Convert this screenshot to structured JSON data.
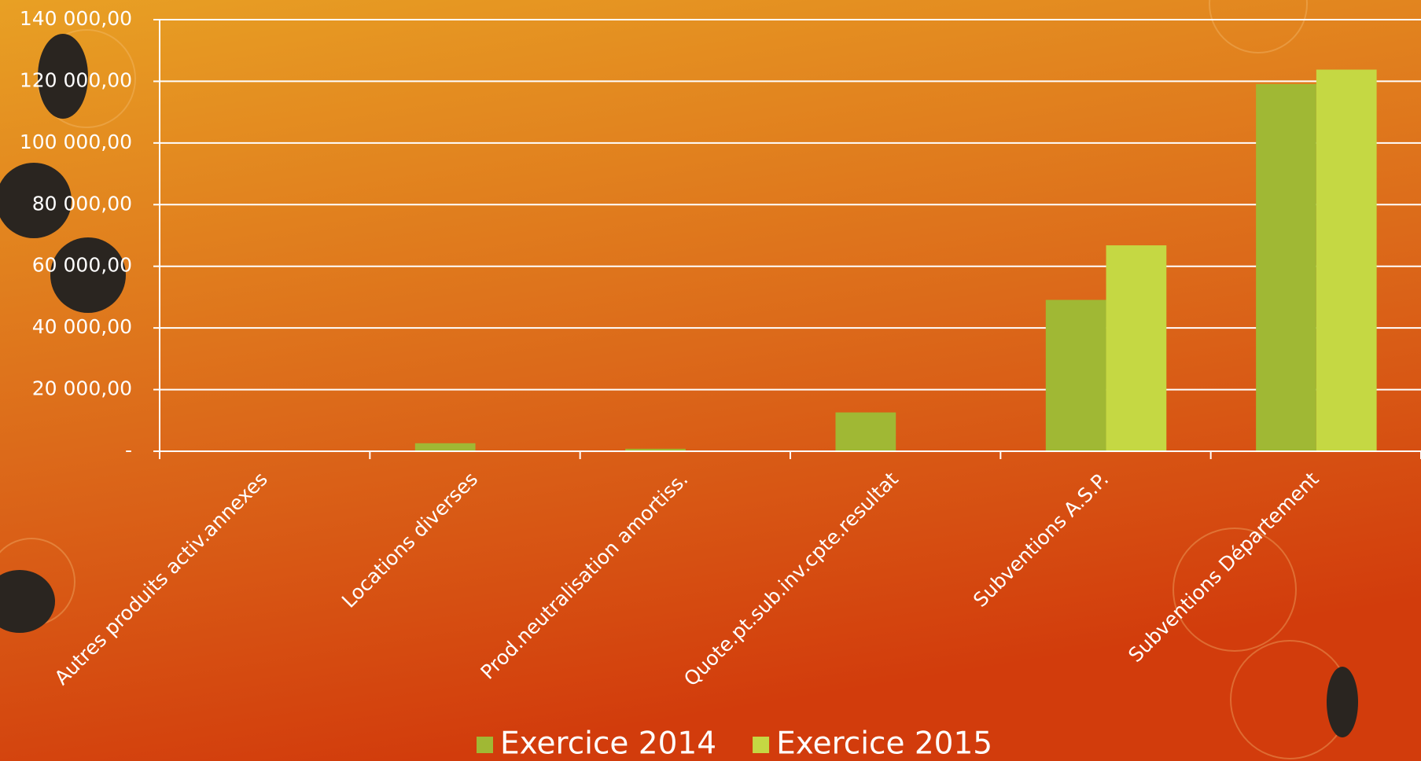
{
  "chart_data": {
    "type": "bar",
    "categories": [
      "Autres produits activ.annexes",
      "Locations diverses",
      "Prod.neutralisation amortiss.",
      "Quote.pt.sub.inv.cpte.resultat",
      "Subventions A.S.P.",
      "Subventions Département"
    ],
    "series": [
      {
        "name": "Exercice 2014",
        "color": "#a0b834",
        "values": [
          0,
          2600,
          800,
          12600,
          49100,
          119100
        ]
      },
      {
        "name": "Exercice 2015",
        "color": "#c5d843",
        "values": [
          0,
          0,
          0,
          0,
          66800,
          123800
        ]
      }
    ],
    "ylim": [
      0,
      140000
    ],
    "yticks": [
      {
        "value": 0,
        "label": "-"
      },
      {
        "value": 20000,
        "label": "20 000,00"
      },
      {
        "value": 40000,
        "label": "40 000,00"
      },
      {
        "value": 60000,
        "label": "60 000,00"
      },
      {
        "value": 80000,
        "label": "80 000,00"
      },
      {
        "value": 100000,
        "label": "100 000,00"
      },
      {
        "value": 120000,
        "label": "120 000,00"
      },
      {
        "value": 140000,
        "label": "140 000,00"
      }
    ],
    "grid": true
  }
}
